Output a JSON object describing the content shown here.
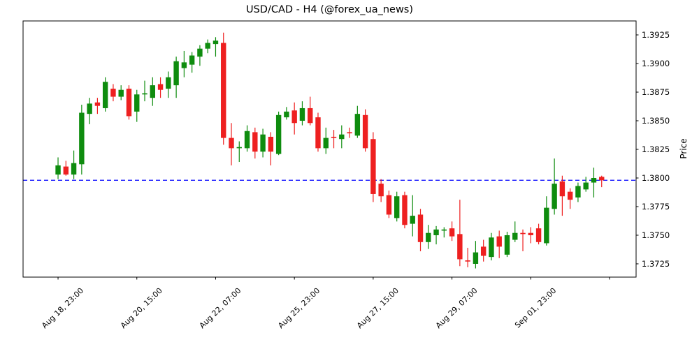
{
  "title": "USD/CAD - H4 (@forex_ua_news)",
  "chart_data": {
    "type": "candlestick",
    "title": "USD/CAD - H4 (@forex_ua_news)",
    "ylabel": "Price",
    "xlabel": "",
    "grid": false,
    "up_color": "#0e8c0e",
    "down_color": "#ee2020",
    "axis_color": "#000000",
    "ylim": [
      1.37134,
      1.39372
    ],
    "xlim": [
      -4.44,
      73.37
    ],
    "y_ticks": [
      1.3725,
      1.375,
      1.3775,
      1.38,
      1.3825,
      1.385,
      1.3875,
      1.39,
      1.3925
    ],
    "x_ticks": [
      {
        "i": 0,
        "label": "Aug 18, 23:00"
      },
      {
        "i": 10,
        "label": "Aug 20, 15:00"
      },
      {
        "i": 20,
        "label": "Aug 22, 07:00"
      },
      {
        "i": 30,
        "label": "Aug 25, 23:00"
      },
      {
        "i": 40,
        "label": "Aug 27, 15:00"
      },
      {
        "i": 50,
        "label": "Aug 29, 07:00"
      },
      {
        "i": 60,
        "label": "Sep 01, 23:00"
      },
      {
        "i": 70,
        "label": ""
      }
    ],
    "hline": {
      "value": 1.3798,
      "color": "#0000ff",
      "style": "dashed"
    },
    "candles_ohlc": [
      [
        1.3803,
        1.3818,
        1.3799,
        1.3811
      ],
      [
        1.381,
        1.3815,
        1.3802,
        1.3803
      ],
      [
        1.3803,
        1.3824,
        1.3799,
        1.3813
      ],
      [
        1.3812,
        1.3864,
        1.3803,
        1.3857
      ],
      [
        1.3856,
        1.387,
        1.3847,
        1.3865
      ],
      [
        1.3866,
        1.387,
        1.3856,
        1.3863
      ],
      [
        1.3861,
        1.3888,
        1.3858,
        1.3884
      ],
      [
        1.3878,
        1.3882,
        1.3867,
        1.3871
      ],
      [
        1.3871,
        1.3881,
        1.3868,
        1.3877
      ],
      [
        1.3878,
        1.3881,
        1.3851,
        1.3854
      ],
      [
        1.3858,
        1.3877,
        1.3849,
        1.3873
      ],
      [
        1.3873,
        1.3885,
        1.3867,
        1.3874
      ],
      [
        1.387,
        1.3888,
        1.3863,
        1.3881
      ],
      [
        1.3882,
        1.3888,
        1.387,
        1.3877
      ],
      [
        1.3878,
        1.3893,
        1.387,
        1.3888
      ],
      [
        1.3881,
        1.3906,
        1.387,
        1.3902
      ],
      [
        1.3896,
        1.3911,
        1.3888,
        1.3901
      ],
      [
        1.3899,
        1.391,
        1.3892,
        1.3907
      ],
      [
        1.3906,
        1.3916,
        1.3898,
        1.3913
      ],
      [
        1.3913,
        1.3921,
        1.3909,
        1.3918
      ],
      [
        1.3917,
        1.3923,
        1.3906,
        1.392
      ],
      [
        1.3918,
        1.3927,
        1.3829,
        1.3835
      ],
      [
        1.3835,
        1.3848,
        1.3811,
        1.3826
      ],
      [
        1.3826,
        1.3832,
        1.3814,
        1.3827
      ],
      [
        1.3826,
        1.3846,
        1.3823,
        1.3841
      ],
      [
        1.384,
        1.3844,
        1.3817,
        1.3823
      ],
      [
        1.3823,
        1.3843,
        1.3818,
        1.3838
      ],
      [
        1.3836,
        1.384,
        1.3811,
        1.3823
      ],
      [
        1.3821,
        1.3858,
        1.382,
        1.3855
      ],
      [
        1.3853,
        1.3862,
        1.3851,
        1.3858
      ],
      [
        1.3859,
        1.3866,
        1.3838,
        1.3848
      ],
      [
        1.385,
        1.3867,
        1.3846,
        1.3861
      ],
      [
        1.3861,
        1.3871,
        1.3846,
        1.3848
      ],
      [
        1.3853,
        1.3857,
        1.3823,
        1.3826
      ],
      [
        1.3826,
        1.3844,
        1.3821,
        1.3835
      ],
      [
        1.3836,
        1.3842,
        1.3826,
        1.3835
      ],
      [
        1.3834,
        1.3846,
        1.3826,
        1.3838
      ],
      [
        1.384,
        1.3844,
        1.3835,
        1.3839
      ],
      [
        1.3837,
        1.3863,
        1.3835,
        1.3856
      ],
      [
        1.3855,
        1.386,
        1.3823,
        1.3826
      ],
      [
        1.3834,
        1.384,
        1.3779,
        1.3786
      ],
      [
        1.3795,
        1.3799,
        1.3779,
        1.3784
      ],
      [
        1.3785,
        1.3789,
        1.3765,
        1.3768
      ],
      [
        1.3765,
        1.3788,
        1.3762,
        1.3784
      ],
      [
        1.3785,
        1.3788,
        1.3756,
        1.3759
      ],
      [
        1.376,
        1.3785,
        1.3749,
        1.3767
      ],
      [
        1.3768,
        1.3773,
        1.3736,
        1.3744
      ],
      [
        1.3744,
        1.3759,
        1.3738,
        1.3752
      ],
      [
        1.375,
        1.3758,
        1.3742,
        1.3755
      ],
      [
        1.3754,
        1.3757,
        1.3748,
        1.3755
      ],
      [
        1.3756,
        1.3762,
        1.3745,
        1.3749
      ],
      [
        1.3751,
        1.3781,
        1.3723,
        1.3729
      ],
      [
        1.3728,
        1.3739,
        1.3722,
        1.3727
      ],
      [
        1.3725,
        1.3745,
        1.3721,
        1.3735
      ],
      [
        1.374,
        1.3746,
        1.3727,
        1.3732
      ],
      [
        1.3731,
        1.3752,
        1.3728,
        1.3748
      ],
      [
        1.3749,
        1.3754,
        1.373,
        1.374
      ],
      [
        1.3733,
        1.3753,
        1.3731,
        1.375
      ],
      [
        1.3746,
        1.3762,
        1.3744,
        1.3752
      ],
      [
        1.3752,
        1.3755,
        1.3736,
        1.3751
      ],
      [
        1.3752,
        1.3757,
        1.3743,
        1.375
      ],
      [
        1.3756,
        1.376,
        1.3742,
        1.3744
      ],
      [
        1.3743,
        1.3784,
        1.3741,
        1.3774
      ],
      [
        1.3773,
        1.3817,
        1.3768,
        1.3795
      ],
      [
        1.3797,
        1.3802,
        1.3767,
        1.3784
      ],
      [
        1.3788,
        1.3791,
        1.3773,
        1.3781
      ],
      [
        1.3783,
        1.3796,
        1.3779,
        1.3793
      ],
      [
        1.379,
        1.3801,
        1.3788,
        1.3796
      ],
      [
        1.3796,
        1.3809,
        1.3783,
        1.38
      ],
      [
        1.3801,
        1.3802,
        1.3792,
        1.3798
      ]
    ]
  }
}
